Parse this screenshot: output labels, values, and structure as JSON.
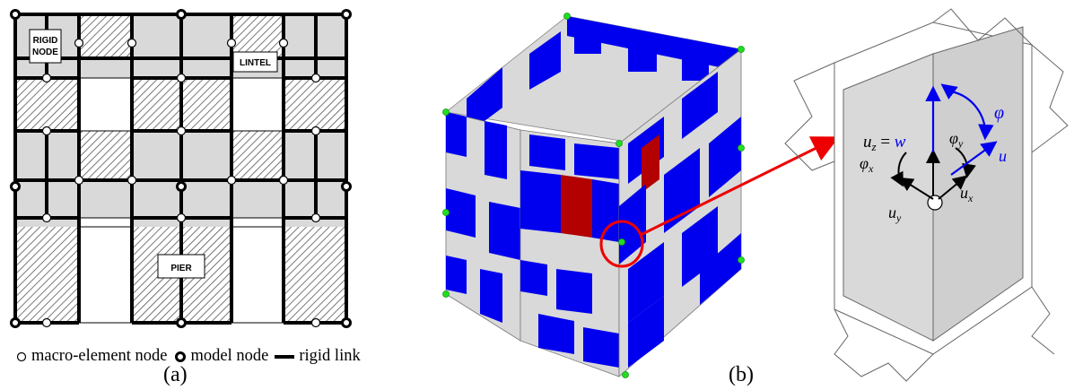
{
  "panel_a": {
    "label": "(a)",
    "rigid_node": [
      "RIGID",
      "NODE"
    ],
    "lintel": "LINTEL",
    "pier": "PIER"
  },
  "panel_b": {
    "label": "(b)"
  },
  "legend": {
    "macro_node": "macro-element node",
    "model_node": "model node",
    "rigid_link": "rigid link"
  },
  "dof": {
    "uz": "u",
    "uz_sub": "z",
    "eq": "= w",
    "phi": "φ",
    "phi_y": "φ",
    "phi_y_sub": "y",
    "phi_x": "φ",
    "phi_x_sub": "x",
    "u": "u",
    "uy": "u",
    "uy_sub": "y",
    "ux": "u",
    "ux_sub": "x"
  },
  "colors": {
    "blue": "#0000ee",
    "red_band": "#b30000",
    "panel_grey": "#d9d9d9",
    "arrow_red": "#ee0000",
    "node_green": "#22dd22"
  }
}
